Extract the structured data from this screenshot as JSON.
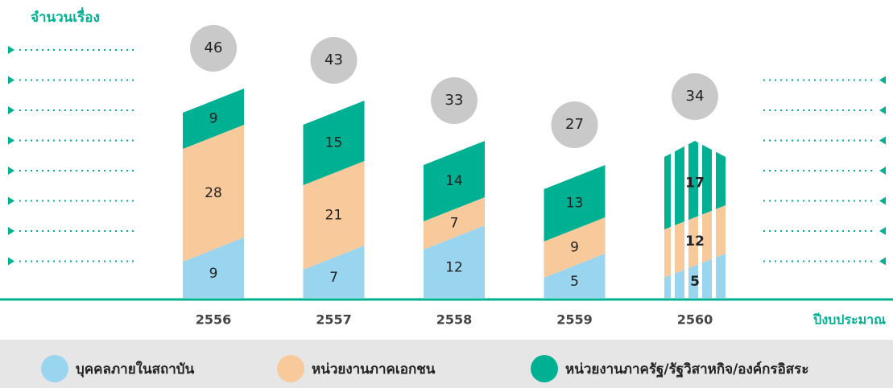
{
  "chart_data": {
    "type": "stacked_bar",
    "y_label": "จำนวนเรื่อง",
    "x_label": "ปีงบประมาณ",
    "categories": [
      "2556",
      "2557",
      "2558",
      "2559",
      "2560"
    ],
    "series": [
      {
        "name": "บุคคลภายในสถาบัน",
        "color": "#9ad5f0",
        "values": [
          9,
          7,
          12,
          5,
          5
        ]
      },
      {
        "name": "หน่วยงานภาคเอกชน",
        "color": "#f8c99a",
        "values": [
          28,
          21,
          7,
          9,
          12
        ]
      },
      {
        "name": "หน่วยงานภาครัฐ/รัฐวิสาหกิจ/องค์กรอิสระ",
        "color": "#00b092",
        "values": [
          9,
          15,
          14,
          13,
          17
        ]
      }
    ],
    "totals": [
      46,
      43,
      33,
      27,
      34
    ],
    "total_color": "#c9c9c9"
  }
}
